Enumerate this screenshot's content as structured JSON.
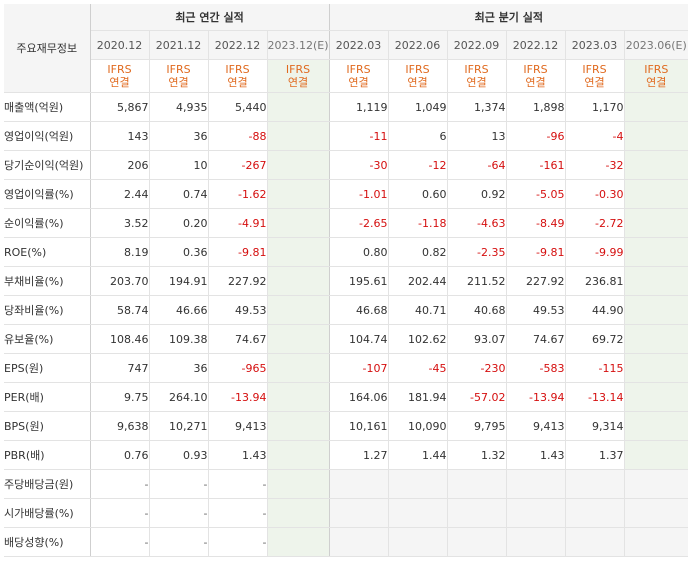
{
  "headers": {
    "corner": "주요재무정보",
    "annual_group": "최근 연간 실적",
    "quarter_group": "최근 분기 실적",
    "periods": [
      "2020.12",
      "2021.12",
      "2022.12",
      "2023.12(E)",
      "2022.03",
      "2022.06",
      "2022.09",
      "2022.12",
      "2023.03",
      "2023.06(E)"
    ],
    "gaap_line1": "IFRS",
    "gaap_line2": "연결"
  },
  "rows": [
    {
      "label": "매출액(억원)",
      "values": [
        "5,867",
        "4,935",
        "5,440",
        "",
        "1,119",
        "1,049",
        "1,374",
        "1,898",
        "1,170",
        ""
      ]
    },
    {
      "label": "영업이익(억원)",
      "values": [
        "143",
        "36",
        "-88",
        "",
        "-11",
        "6",
        "13",
        "-96",
        "-4",
        ""
      ]
    },
    {
      "label": "당기순이익(억원)",
      "values": [
        "206",
        "10",
        "-267",
        "",
        "-30",
        "-12",
        "-64",
        "-161",
        "-32",
        ""
      ]
    },
    {
      "label": "영업이익률(%)",
      "values": [
        "2.44",
        "0.74",
        "-1.62",
        "",
        "-1.01",
        "0.60",
        "0.92",
        "-5.05",
        "-0.30",
        ""
      ]
    },
    {
      "label": "순이익률(%)",
      "values": [
        "3.52",
        "0.20",
        "-4.91",
        "",
        "-2.65",
        "-1.18",
        "-4.63",
        "-8.49",
        "-2.72",
        ""
      ]
    },
    {
      "label": "ROE(%)",
      "values": [
        "8.19",
        "0.36",
        "-9.81",
        "",
        "0.80",
        "0.82",
        "-2.35",
        "-9.81",
        "-9.99",
        ""
      ]
    },
    {
      "label": "부채비율(%)",
      "values": [
        "203.70",
        "194.91",
        "227.92",
        "",
        "195.61",
        "202.44",
        "211.52",
        "227.92",
        "236.81",
        ""
      ]
    },
    {
      "label": "당좌비율(%)",
      "values": [
        "58.74",
        "46.66",
        "49.53",
        "",
        "46.68",
        "40.71",
        "40.68",
        "49.53",
        "44.90",
        ""
      ]
    },
    {
      "label": "유보율(%)",
      "values": [
        "108.46",
        "109.38",
        "74.67",
        "",
        "104.74",
        "102.62",
        "93.07",
        "74.67",
        "69.72",
        ""
      ]
    },
    {
      "label": "EPS(원)",
      "values": [
        "747",
        "36",
        "-965",
        "",
        "-107",
        "-45",
        "-230",
        "-583",
        "-115",
        ""
      ]
    },
    {
      "label": "PER(배)",
      "values": [
        "9.75",
        "264.10",
        "-13.94",
        "",
        "164.06",
        "181.94",
        "-57.02",
        "-13.94",
        "-13.14",
        ""
      ]
    },
    {
      "label": "BPS(원)",
      "values": [
        "9,638",
        "10,271",
        "9,413",
        "",
        "10,161",
        "10,090",
        "9,795",
        "9,413",
        "9,314",
        ""
      ]
    },
    {
      "label": "PBR(배)",
      "values": [
        "0.76",
        "0.93",
        "1.43",
        "",
        "1.27",
        "1.44",
        "1.32",
        "1.43",
        "1.37",
        ""
      ]
    },
    {
      "label": "주당배당금(원)",
      "values": [
        "-",
        "-",
        "-",
        "",
        "",
        "",
        "",
        "",
        "",
        ""
      ]
    },
    {
      "label": "시가배당률(%)",
      "values": [
        "-",
        "-",
        "-",
        "",
        "",
        "",
        "",
        "",
        "",
        ""
      ]
    },
    {
      "label": "배당성향(%)",
      "values": [
        "-",
        "-",
        "-",
        "",
        "",
        "",
        "",
        "",
        "",
        ""
      ]
    }
  ]
}
